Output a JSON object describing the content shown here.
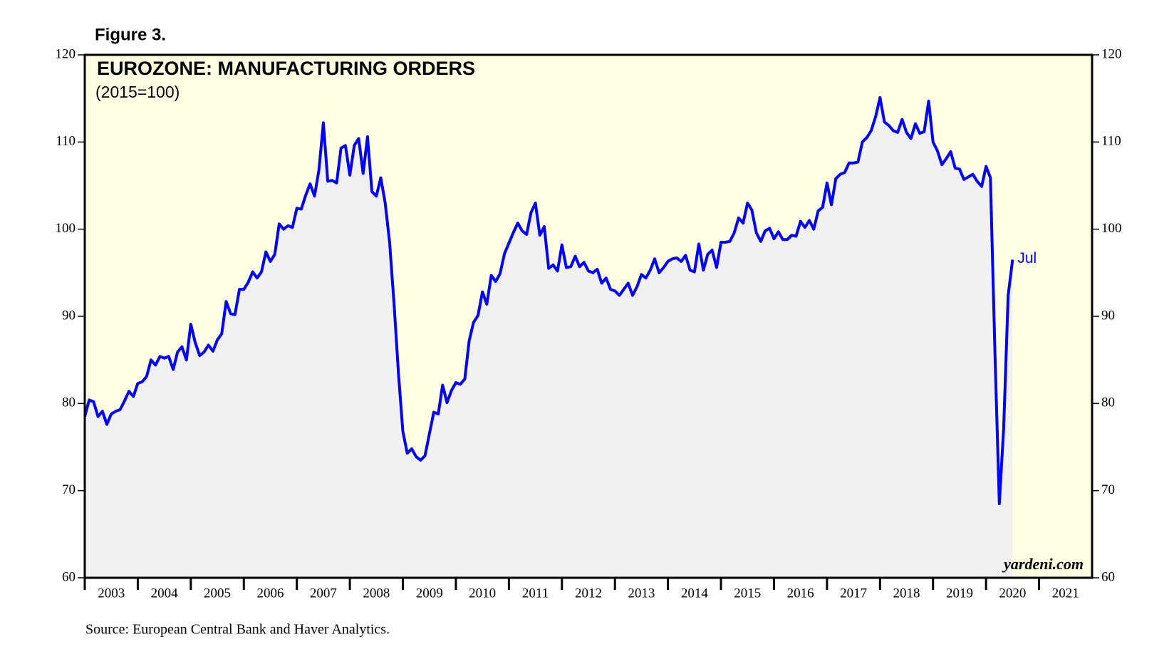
{
  "chart_data": {
    "type": "line",
    "figure_label": "Figure 3.",
    "title": "EUROZONE: MANUFACTURING ORDERS",
    "subtitle": "(2015=100)",
    "annotation": "Jul",
    "watermark": "yardeni.com",
    "source": "Source: European Central Bank and Haver Analytics.",
    "xlim": [
      2003,
      2022
    ],
    "xticks": [
      2003,
      2004,
      2005,
      2006,
      2007,
      2008,
      2009,
      2010,
      2011,
      2012,
      2013,
      2014,
      2015,
      2016,
      2017,
      2018,
      2019,
      2020,
      2021
    ],
    "ylim": [
      60,
      120
    ],
    "yticks": [
      60,
      70,
      80,
      90,
      100,
      110,
      120
    ],
    "y2lim": [
      60,
      120
    ],
    "y2ticks": [
      60,
      70,
      80,
      90,
      100,
      110,
      120
    ],
    "x": [
      2003,
      2003.083,
      2003.167,
      2003.25,
      2003.333,
      2003.417,
      2003.5,
      2003.583,
      2003.667,
      2003.75,
      2003.833,
      2003.917,
      2004,
      2004.083,
      2004.167,
      2004.25,
      2004.333,
      2004.417,
      2004.5,
      2004.583,
      2004.667,
      2004.75,
      2004.833,
      2004.917,
      2005,
      2005.083,
      2005.167,
      2005.25,
      2005.333,
      2005.417,
      2005.5,
      2005.583,
      2005.667,
      2005.75,
      2005.833,
      2005.917,
      2006,
      2006.083,
      2006.167,
      2006.25,
      2006.333,
      2006.417,
      2006.5,
      2006.583,
      2006.667,
      2006.75,
      2006.833,
      2006.917,
      2007,
      2007.083,
      2007.167,
      2007.25,
      2007.333,
      2007.417,
      2007.5,
      2007.583,
      2007.667,
      2007.75,
      2007.833,
      2007.917,
      2008,
      2008.083,
      2008.167,
      2008.25,
      2008.333,
      2008.417,
      2008.5,
      2008.583,
      2008.667,
      2008.75,
      2008.833,
      2008.917,
      2009,
      2009.083,
      2009.167,
      2009.25,
      2009.333,
      2009.417,
      2009.5,
      2009.583,
      2009.667,
      2009.75,
      2009.833,
      2009.917,
      2010,
      2010.083,
      2010.167,
      2010.25,
      2010.333,
      2010.417,
      2010.5,
      2010.583,
      2010.667,
      2010.75,
      2010.833,
      2010.917,
      2011,
      2011.083,
      2011.167,
      2011.25,
      2011.333,
      2011.417,
      2011.5,
      2011.583,
      2011.667,
      2011.75,
      2011.833,
      2011.917,
      2012,
      2012.083,
      2012.167,
      2012.25,
      2012.333,
      2012.417,
      2012.5,
      2012.583,
      2012.667,
      2012.75,
      2012.833,
      2012.917,
      2013,
      2013.083,
      2013.167,
      2013.25,
      2013.333,
      2013.417,
      2013.5,
      2013.583,
      2013.667,
      2013.75,
      2013.833,
      2013.917,
      2014,
      2014.083,
      2014.167,
      2014.25,
      2014.333,
      2014.417,
      2014.5,
      2014.583,
      2014.667,
      2014.75,
      2014.833,
      2014.917,
      2015,
      2015.083,
      2015.167,
      2015.25,
      2015.333,
      2015.417,
      2015.5,
      2015.583,
      2015.667,
      2015.75,
      2015.833,
      2015.917,
      2016,
      2016.083,
      2016.167,
      2016.25,
      2016.333,
      2016.417,
      2016.5,
      2016.583,
      2016.667,
      2016.75,
      2016.833,
      2016.917,
      2017,
      2017.083,
      2017.167,
      2017.25,
      2017.333,
      2017.417,
      2017.5,
      2017.583,
      2017.667,
      2017.75,
      2017.833,
      2017.917,
      2018,
      2018.083,
      2018.167,
      2018.25,
      2018.333,
      2018.417,
      2018.5,
      2018.583,
      2018.667,
      2018.75,
      2018.833,
      2018.917,
      2019,
      2019.083,
      2019.167,
      2019.25,
      2019.333,
      2019.417,
      2019.5,
      2019.583,
      2019.667,
      2019.75,
      2019.833,
      2019.917,
      2020,
      2020.083,
      2020.167,
      2020.25,
      2020.333,
      2020.417,
      2020.5
    ],
    "series": [
      {
        "name": "Manufacturing orders",
        "color": "#0000ff",
        "values": [
          78.5,
          80.4,
          80.2,
          78.5,
          79.1,
          77.6,
          78.8,
          79.1,
          79.3,
          80.3,
          81.4,
          80.8,
          82.3,
          82.5,
          83.1,
          85.0,
          84.4,
          85.4,
          85.2,
          85.4,
          83.9,
          85.9,
          86.5,
          85.0,
          89.1,
          87.0,
          85.5,
          85.9,
          86.7,
          86.0,
          87.3,
          88.0,
          91.7,
          90.3,
          90.2,
          93.1,
          93.1,
          93.9,
          95.1,
          94.4,
          95.1,
          97.4,
          96.3,
          97.1,
          100.6,
          100.0,
          100.4,
          100.2,
          102.4,
          102.3,
          103.9,
          105.2,
          103.8,
          106.8,
          112.2,
          105.5,
          105.6,
          105.3,
          109.3,
          109.6,
          106.2,
          109.6,
          110.4,
          106.4,
          110.6,
          104.3,
          103.8,
          105.9,
          103.0,
          98.5,
          91.5,
          83.5,
          76.8,
          74.3,
          74.8,
          73.9,
          73.5,
          74.0,
          76.5,
          79.0,
          78.8,
          82.1,
          80.1,
          81.5,
          82.4,
          82.2,
          82.8,
          87.2,
          89.3,
          90.1,
          92.8,
          91.4,
          94.7,
          94.0,
          94.9,
          97.2,
          98.4,
          99.6,
          100.7,
          99.8,
          99.4,
          101.9,
          103.0,
          99.3,
          100.3,
          95.5,
          95.9,
          95.2,
          98.2,
          95.6,
          95.7,
          96.9,
          95.7,
          96.2,
          95.2,
          95.0,
          95.4,
          93.8,
          94.4,
          93.1,
          92.9,
          92.4,
          93.1,
          93.8,
          92.4,
          93.4,
          94.8,
          94.4,
          95.3,
          96.6,
          95.0,
          95.6,
          96.3,
          96.6,
          96.7,
          96.3,
          97.0,
          95.3,
          95.1,
          98.3,
          95.3,
          97.1,
          97.6,
          95.6,
          98.5,
          98.5,
          98.6,
          99.6,
          101.3,
          100.7,
          103.0,
          102.2,
          99.6,
          98.6,
          99.8,
          100.1,
          98.9,
          99.7,
          98.8,
          98.8,
          99.3,
          99.2,
          100.9,
          100.2,
          101.0,
          100.0,
          102.1,
          102.5,
          105.3,
          102.8,
          105.8,
          106.3,
          106.5,
          107.6,
          107.6,
          107.7,
          110.0,
          110.5,
          111.3,
          112.9,
          115.1,
          112.3,
          111.9,
          111.3,
          111.1,
          112.6,
          111.1,
          110.4,
          112.1,
          111.0,
          111.2,
          114.7,
          110.0,
          109.0,
          107.4,
          108.1,
          108.9,
          107.0,
          106.9,
          105.7,
          106.0,
          106.3,
          105.5,
          104.9,
          107.2,
          105.9,
          86.0,
          68.5,
          77.2,
          92.4,
          96.5
        ]
      }
    ],
    "plot_background": "#ffffe3",
    "area_color": "#f1f1f1"
  }
}
